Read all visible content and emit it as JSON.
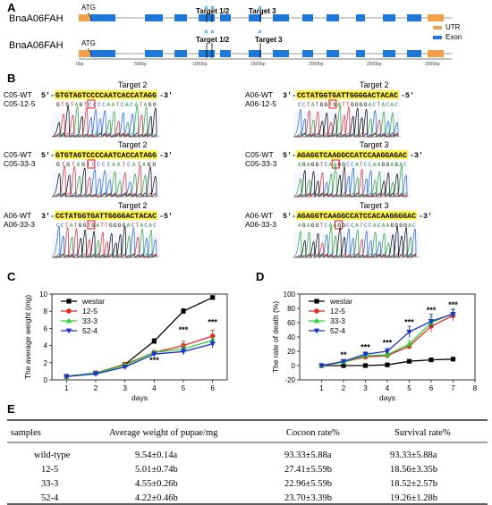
{
  "panel_a": {
    "letter": "A",
    "genes": [
      {
        "name": "BnaA06FAH",
        "atg": "ATG",
        "targets": [
          "Target 1/2",
          "Target 3"
        ]
      },
      {
        "name": "BnaA06FAH",
        "atg": "ATG",
        "targets": [
          "Target 1/2",
          "Target 3"
        ]
      }
    ],
    "scale_labels": [
      "0bp",
      "500bp",
      "1000bp",
      "1500bp",
      "2000bp",
      "2500bp",
      "3000bp"
    ],
    "legend": [
      {
        "label": "UTR",
        "color": "#f0a04b"
      },
      {
        "label": "Exon",
        "color": "#1f78d8"
      }
    ]
  },
  "panel_b": {
    "letter": "B",
    "blocks": [
      {
        "title": "Target 2",
        "ref_label": "C05-WT",
        "mut_label": "C05-12-5",
        "ref_prefix": "5'-",
        "ref_seq": "GTGTAGTCCCCAATCACCATAGG",
        "ref_suffix": "-3'",
        "mut_seq": "GTGTAGTCCCCAATCACATAGG"
      },
      {
        "title": "Target 2",
        "ref_label": "A06-WT",
        "mut_label": "A06-12-5",
        "ref_prefix": "3'-",
        "ref_seq": "CCTATGGTGATTGGGGACTACAC",
        "ref_suffix": "-5'",
        "mut_seq": "CCTATGGTGATTGGGGACTACAC"
      },
      {
        "title": "Target 2",
        "ref_label": "C05-WT",
        "mut_label": "C05-33-3",
        "ref_prefix": "5'-",
        "ref_seq": "GTGTAGTCCCCAATCACCATAGG",
        "ref_suffix": "-3'",
        "mut_seq": "GTGTAGTCCCCAATCATAGG"
      },
      {
        "title": "Target 3",
        "ref_label": "C05-WT",
        "mut_label": "C05-33-3",
        "ref_prefix": "5'-",
        "ref_seq": "AGAGGTCAAGGCCATCCAAGGAGAC",
        "ref_suffix": "-3'",
        "mut_seq": "AGAGGTCAAGGCCATCCAAGGAGAC"
      },
      {
        "title": "Target 2",
        "ref_label": "A06-WT",
        "mut_label": "A06-33-3",
        "ref_prefix": "3'-",
        "ref_seq": "CCTATGGTGATTGGGGACTACAC",
        "ref_suffix": "-5'",
        "mut_seq": "CCTATGGTGATTGGGGACTACAC"
      },
      {
        "title": "Target 3",
        "ref_label": "A06-WT",
        "mut_label": "A06-33-3",
        "ref_prefix": "5'-",
        "ref_seq": "AGAGGTCAAGGCCATCCACAAGGGGAC",
        "ref_suffix": "-3'",
        "mut_seq": "AGAGGTCAAGGCCATCCACAAGGGGAC"
      }
    ]
  },
  "chart_data": [
    {
      "panel": "C",
      "type": "line",
      "title": "",
      "xlabel": "days",
      "ylabel": "The average weight (mg)",
      "x": [
        1,
        2,
        3,
        4,
        5,
        6
      ],
      "xlim": [
        0.5,
        6.5
      ],
      "ylim": [
        0,
        10
      ],
      "yticks": [
        0,
        2,
        4,
        6,
        8,
        10
      ],
      "xticks": [
        1,
        2,
        3,
        4,
        5,
        6
      ],
      "legend_position": "top-left",
      "series": [
        {
          "name": "westar",
          "color": "#000000",
          "marker": "square",
          "values": [
            0.4,
            0.8,
            1.8,
            4.5,
            8.0,
            9.6
          ],
          "errors": [
            0.05,
            0.1,
            0.15,
            0.3,
            0.3,
            0.15
          ]
        },
        {
          "name": "12-5",
          "color": "#e8251f",
          "marker": "circle",
          "values": [
            0.4,
            0.8,
            1.8,
            3.2,
            4.0,
            5.1
          ],
          "errors": [
            0.05,
            0.1,
            0.15,
            0.25,
            0.5,
            0.7
          ]
        },
        {
          "name": "33-3",
          "color": "#2bd12b",
          "marker": "triangle-up",
          "values": [
            0.4,
            0.8,
            1.7,
            3.2,
            3.6,
            4.6
          ],
          "errors": [
            0.05,
            0.1,
            0.15,
            0.25,
            0.4,
            0.3
          ]
        },
        {
          "name": "52-4",
          "color": "#1a2fd8",
          "marker": "triangle-down",
          "values": [
            0.4,
            0.7,
            1.5,
            3.0,
            3.3,
            4.2
          ],
          "errors": [
            0.05,
            0.1,
            0.15,
            0.25,
            0.4,
            0.5
          ]
        }
      ],
      "annotations": [
        {
          "x": 4,
          "y": 2.0,
          "text": "***"
        },
        {
          "x": 5,
          "y": 5.5,
          "text": "***"
        },
        {
          "x": 6,
          "y": 6.4,
          "text": "***"
        }
      ]
    },
    {
      "panel": "D",
      "type": "line",
      "title": "",
      "xlabel": "days",
      "ylabel": "The rate of death (%)",
      "x": [
        1,
        2,
        3,
        4,
        5,
        6,
        7
      ],
      "xlim": [
        0,
        8
      ],
      "ylim": [
        -20,
        100
      ],
      "yticks": [
        -20,
        0,
        20,
        40,
        60,
        80,
        100
      ],
      "xticks": [
        1,
        2,
        3,
        4,
        5,
        6,
        7,
        8
      ],
      "legend_position": "top-left",
      "series": [
        {
          "name": "westar",
          "color": "#000000",
          "marker": "square",
          "values": [
            0,
            0,
            0,
            1,
            6,
            8,
            9
          ],
          "errors": [
            0,
            0,
            0,
            0.5,
            1,
            1,
            1
          ]
        },
        {
          "name": "12-5",
          "color": "#e8251f",
          "marker": "circle",
          "values": [
            0,
            5,
            12,
            14,
            27,
            55,
            70
          ],
          "errors": [
            1,
            2,
            3,
            3,
            4,
            8,
            8
          ]
        },
        {
          "name": "33-3",
          "color": "#2bd12b",
          "marker": "triangle-up",
          "values": [
            0,
            5,
            14,
            15,
            30,
            60,
            73
          ],
          "errors": [
            1,
            2,
            3,
            3,
            5,
            8,
            7
          ]
        },
        {
          "name": "52-4",
          "color": "#1a2fd8",
          "marker": "triangle-down",
          "values": [
            0,
            6,
            16,
            20,
            47,
            62,
            72
          ],
          "errors": [
            1,
            2,
            3,
            4,
            8,
            10,
            6
          ]
        }
      ],
      "annotations": [
        {
          "x": 2,
          "y": 11,
          "text": "**"
        },
        {
          "x": 3,
          "y": 22,
          "text": "***"
        },
        {
          "x": 4,
          "y": 28,
          "text": "***"
        },
        {
          "x": 5,
          "y": 57,
          "text": "***"
        },
        {
          "x": 6,
          "y": 74,
          "text": "***"
        },
        {
          "x": 7,
          "y": 81,
          "text": "***"
        }
      ]
    }
  ],
  "panel_c_letter": "C",
  "panel_d_letter": "D",
  "panel_e": {
    "letter": "E",
    "columns": [
      "samples",
      "Average weight of pupae/mg",
      "Cocoon rate%",
      "Survival rate%"
    ],
    "rows": [
      [
        "wild-type",
        "9.54±0.14a",
        "93.33±5.88a",
        "93.33±5.88a"
      ],
      [
        "12-5",
        "5.01±0.74b",
        "27.41±5.59b",
        "18.56±3.35b"
      ],
      [
        "33-3",
        "4.55±0.26b",
        "22.96±5.59b",
        "18.52±2.57b"
      ],
      [
        "52-4",
        "4.22±0.46b",
        "23.70±3.39b",
        "19.26±1.28b"
      ]
    ]
  }
}
